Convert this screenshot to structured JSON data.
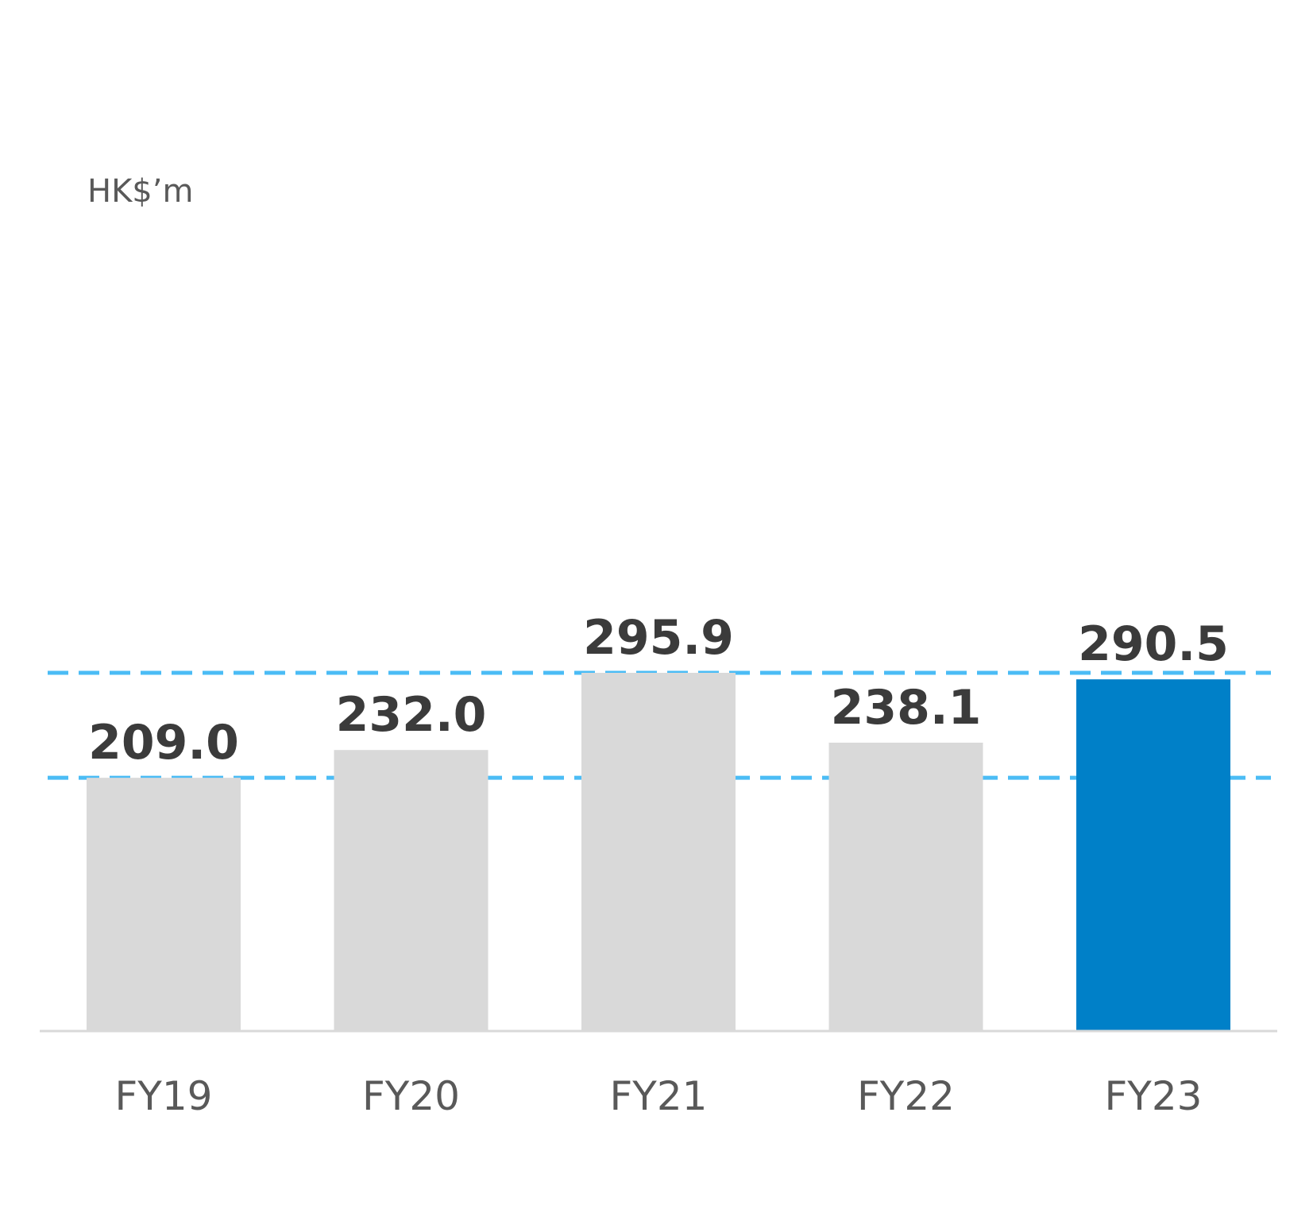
{
  "chart_data": {
    "type": "bar",
    "unit_label": "HK$’m",
    "categories": [
      "FY19",
      "FY20",
      "FY21",
      "FY22",
      "FY23"
    ],
    "values": [
      209.0,
      232.0,
      295.9,
      238.1,
      290.5
    ],
    "value_labels": [
      "209.0",
      "232.0",
      "295.9",
      "238.1",
      "290.5"
    ],
    "highlight_index": 4,
    "colors": {
      "bar": "#d9d9d9",
      "highlight": "#0080c8",
      "reference_line": "#4bbcf5",
      "axis": "#d9d9d9"
    },
    "reference_lines": [
      209.0,
      295.9
    ],
    "reference_line_style": "dashed",
    "ylim": [
      0,
      295.9
    ],
    "grid": false,
    "legend": "none"
  }
}
